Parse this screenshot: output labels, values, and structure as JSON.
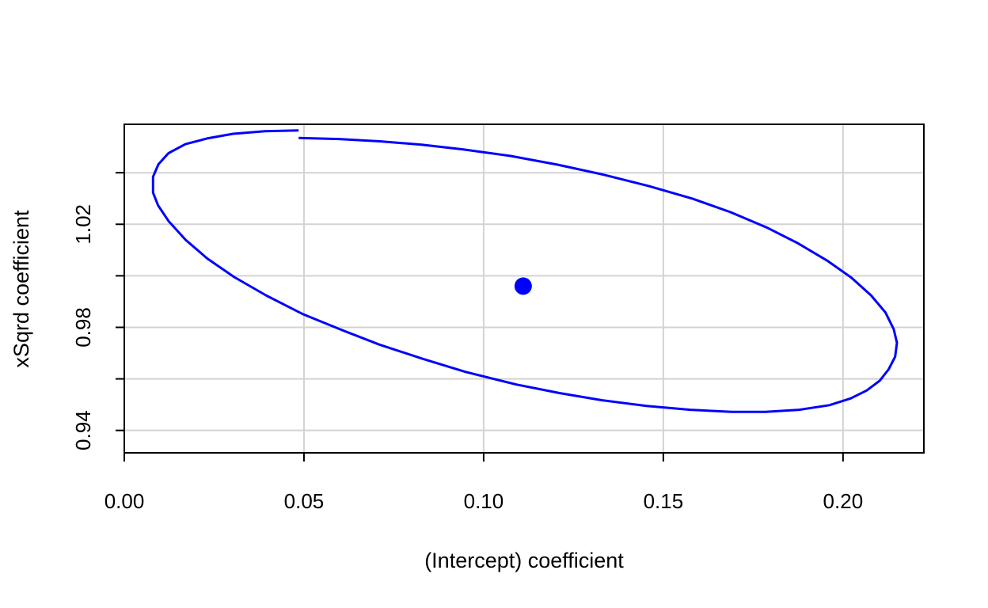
{
  "chart_data": {
    "type": "scatter",
    "title": "",
    "xlabel": "(Intercept) coefficient",
    "ylabel": "xSqrd coefficient",
    "xlim": [
      0.0,
      0.2225
    ],
    "ylim": [
      0.9313,
      1.0588
    ],
    "x_ticks": [
      0.0,
      0.05,
      0.1,
      0.15,
      0.2
    ],
    "x_tick_labels": [
      "0.00",
      "0.05",
      "0.10",
      "0.15",
      "0.20"
    ],
    "y_ticks": [
      0.94,
      0.96,
      0.98,
      1.0,
      1.02,
      1.04
    ],
    "y_tick_labels": [
      "0.94",
      "",
      "0.98",
      "",
      "1.02",
      ""
    ],
    "grid": true,
    "colors": {
      "series": "#0000ff",
      "grid": "#d3d3d3",
      "axis": "#000000"
    },
    "center_point": {
      "x": 0.111,
      "y": 0.996
    },
    "confidence_ellipse": [
      [
        0.0485,
        1.0535
      ],
      [
        0.0597,
        1.0531
      ],
      [
        0.0711,
        1.0522
      ],
      [
        0.0827,
        1.0509
      ],
      [
        0.0941,
        1.0491
      ],
      [
        0.1075,
        1.0465
      ],
      [
        0.1207,
        1.0431
      ],
      [
        0.1335,
        1.0392
      ],
      [
        0.146,
        1.0348
      ],
      [
        0.1582,
        1.0299
      ],
      [
        0.1687,
        1.0247
      ],
      [
        0.1787,
        1.0188
      ],
      [
        0.1875,
        1.0126
      ],
      [
        0.1955,
        1.006
      ],
      [
        0.2022,
        0.9994
      ],
      [
        0.2078,
        0.9924
      ],
      [
        0.2118,
        0.9858
      ],
      [
        0.2141,
        0.9793
      ],
      [
        0.215,
        0.974
      ],
      [
        0.2145,
        0.9686
      ],
      [
        0.2127,
        0.9637
      ],
      [
        0.2102,
        0.9593
      ],
      [
        0.2066,
        0.9555
      ],
      [
        0.2021,
        0.9524
      ],
      [
        0.1962,
        0.9498
      ],
      [
        0.1878,
        0.948
      ],
      [
        0.1784,
        0.9472
      ],
      [
        0.169,
        0.9472
      ],
      [
        0.1575,
        0.948
      ],
      [
        0.1453,
        0.9495
      ],
      [
        0.133,
        0.9517
      ],
      [
        0.1211,
        0.9545
      ],
      [
        0.1091,
        0.9578
      ],
      [
        0.095,
        0.9627
      ],
      [
        0.083,
        0.9678
      ],
      [
        0.071,
        0.9733
      ],
      [
        0.0607,
        0.9789
      ],
      [
        0.0496,
        0.9852
      ],
      [
        0.0396,
        0.9923
      ],
      [
        0.0306,
        0.9995
      ],
      [
        0.0231,
        1.0067
      ],
      [
        0.0171,
        1.0139
      ],
      [
        0.0123,
        1.0213
      ],
      [
        0.0094,
        1.0273
      ],
      [
        0.008,
        1.0323
      ],
      [
        0.008,
        1.0384
      ],
      [
        0.0095,
        1.0433
      ],
      [
        0.0123,
        1.0476
      ],
      [
        0.017,
        1.0511
      ],
      [
        0.0233,
        1.0534
      ],
      [
        0.0303,
        1.0551
      ],
      [
        0.0391,
        1.0561
      ],
      [
        0.0485,
        1.0564
      ]
    ]
  }
}
